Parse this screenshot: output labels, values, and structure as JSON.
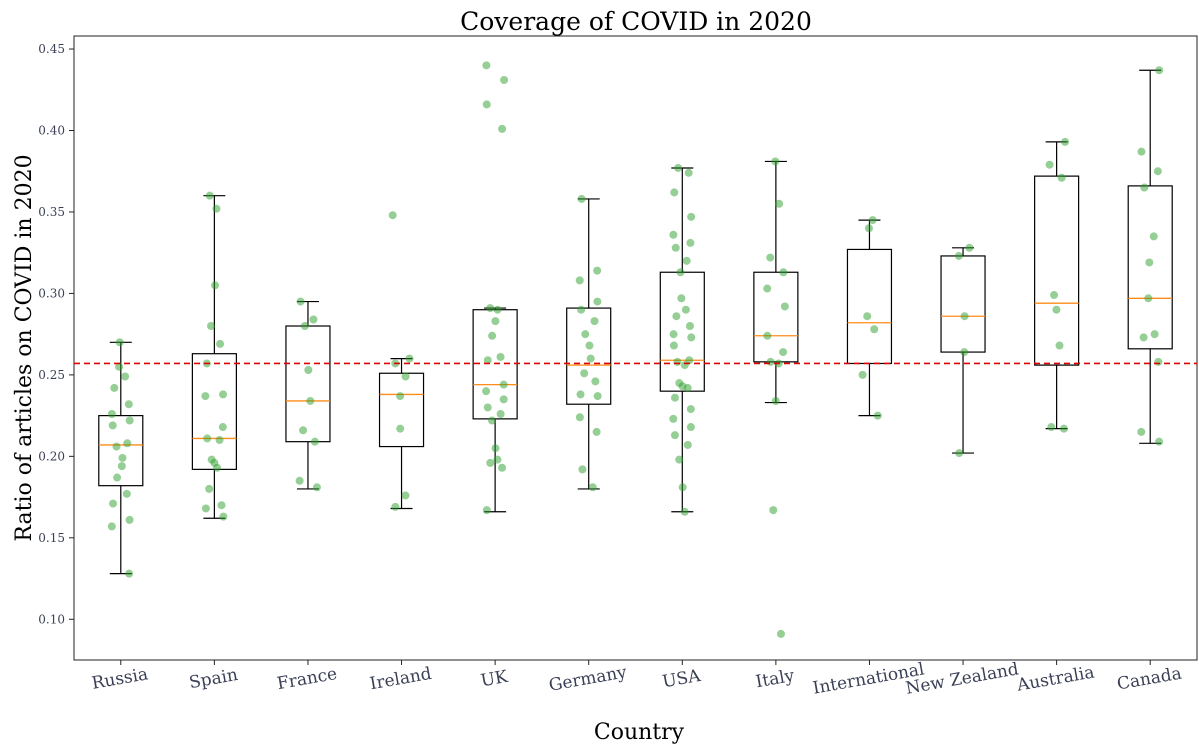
{
  "chart_data": {
    "type": "box",
    "title": "Coverage of COVID in 2020",
    "xlabel": "Country",
    "ylabel": "Ratio of articles on COVID in 2020",
    "ylim": [
      0.075,
      0.458
    ],
    "yticks": [
      "0.10",
      "0.15",
      "0.20",
      "0.25",
      "0.30",
      "0.35",
      "0.40",
      "0.45"
    ],
    "reference_line": {
      "y": 0.257,
      "color": "#dd0000",
      "style": "dashed"
    },
    "colors": {
      "box": "#000000",
      "median": "#ff8c1a",
      "points": "#2ca02c"
    },
    "categories": [
      "Russia",
      "Spain",
      "France",
      "Ireland",
      "UK",
      "Germany",
      "USA",
      "Italy",
      "International",
      "New Zealand",
      "Australia",
      "Canada"
    ],
    "boxes": [
      {
        "category": "Russia",
        "whisker_low": 0.128,
        "q1": 0.182,
        "median": 0.207,
        "q3": 0.225,
        "whisker_high": 0.27
      },
      {
        "category": "Spain",
        "whisker_low": 0.162,
        "q1": 0.192,
        "median": 0.211,
        "q3": 0.263,
        "whisker_high": 0.36
      },
      {
        "category": "France",
        "whisker_low": 0.18,
        "q1": 0.209,
        "median": 0.234,
        "q3": 0.28,
        "whisker_high": 0.295
      },
      {
        "category": "Ireland",
        "whisker_low": 0.168,
        "q1": 0.206,
        "median": 0.238,
        "q3": 0.251,
        "whisker_high": 0.26
      },
      {
        "category": "UK",
        "whisker_low": 0.166,
        "q1": 0.223,
        "median": 0.244,
        "q3": 0.29,
        "whisker_high": 0.291
      },
      {
        "category": "Germany",
        "whisker_low": 0.18,
        "q1": 0.232,
        "median": 0.256,
        "q3": 0.291,
        "whisker_high": 0.358
      },
      {
        "category": "USA",
        "whisker_low": 0.166,
        "q1": 0.24,
        "median": 0.259,
        "q3": 0.313,
        "whisker_high": 0.377
      },
      {
        "category": "Italy",
        "whisker_low": 0.233,
        "q1": 0.258,
        "median": 0.274,
        "q3": 0.313,
        "whisker_high": 0.381
      },
      {
        "category": "International",
        "whisker_low": 0.225,
        "q1": 0.257,
        "median": 0.282,
        "q3": 0.327,
        "whisker_high": 0.345
      },
      {
        "category": "New Zealand",
        "whisker_low": 0.202,
        "q1": 0.264,
        "median": 0.286,
        "q3": 0.323,
        "whisker_high": 0.328
      },
      {
        "category": "Australia",
        "whisker_low": 0.217,
        "q1": 0.256,
        "median": 0.294,
        "q3": 0.372,
        "whisker_high": 0.393
      },
      {
        "category": "Canada",
        "whisker_low": 0.208,
        "q1": 0.266,
        "median": 0.297,
        "q3": 0.366,
        "whisker_high": 0.437
      }
    ],
    "points": {
      "Russia": [
        0.27,
        0.255,
        0.249,
        0.242,
        0.232,
        0.226,
        0.222,
        0.219,
        0.208,
        0.206,
        0.199,
        0.194,
        0.187,
        0.177,
        0.171,
        0.161,
        0.157,
        0.128
      ],
      "Spain": [
        0.36,
        0.352,
        0.305,
        0.28,
        0.269,
        0.257,
        0.238,
        0.237,
        0.218,
        0.211,
        0.21,
        0.198,
        0.196,
        0.193,
        0.18,
        0.17,
        0.168,
        0.163
      ],
      "France": [
        0.295,
        0.284,
        0.28,
        0.253,
        0.234,
        0.216,
        0.209,
        0.185,
        0.181
      ],
      "Ireland": [
        0.348,
        0.26,
        0.257,
        0.249,
        0.237,
        0.217,
        0.176,
        0.169
      ],
      "UK": [
        0.44,
        0.431,
        0.416,
        0.401,
        0.291,
        0.29,
        0.283,
        0.274,
        0.261,
        0.259,
        0.244,
        0.24,
        0.235,
        0.23,
        0.226,
        0.222,
        0.205,
        0.198,
        0.196,
        0.193,
        0.167
      ],
      "Germany": [
        0.358,
        0.314,
        0.308,
        0.295,
        0.29,
        0.283,
        0.275,
        0.268,
        0.26,
        0.251,
        0.246,
        0.238,
        0.237,
        0.224,
        0.215,
        0.192,
        0.181
      ],
      "USA": [
        0.377,
        0.374,
        0.362,
        0.347,
        0.336,
        0.331,
        0.328,
        0.32,
        0.313,
        0.297,
        0.29,
        0.286,
        0.28,
        0.275,
        0.273,
        0.268,
        0.259,
        0.258,
        0.256,
        0.243,
        0.245,
        0.242,
        0.236,
        0.229,
        0.223,
        0.218,
        0.213,
        0.207,
        0.198,
        0.181,
        0.166
      ],
      "Italy": [
        0.381,
        0.355,
        0.322,
        0.313,
        0.303,
        0.292,
        0.274,
        0.264,
        0.258,
        0.257,
        0.234,
        0.167,
        0.091
      ],
      "International": [
        0.345,
        0.34,
        0.286,
        0.278,
        0.25,
        0.225
      ],
      "New Zealand": [
        0.328,
        0.323,
        0.286,
        0.264,
        0.202
      ],
      "Australia": [
        0.393,
        0.379,
        0.371,
        0.299,
        0.29,
        0.268,
        0.218,
        0.217
      ],
      "Canada": [
        0.437,
        0.387,
        0.375,
        0.365,
        0.335,
        0.319,
        0.297,
        0.275,
        0.273,
        0.258,
        0.215,
        0.209
      ]
    }
  }
}
